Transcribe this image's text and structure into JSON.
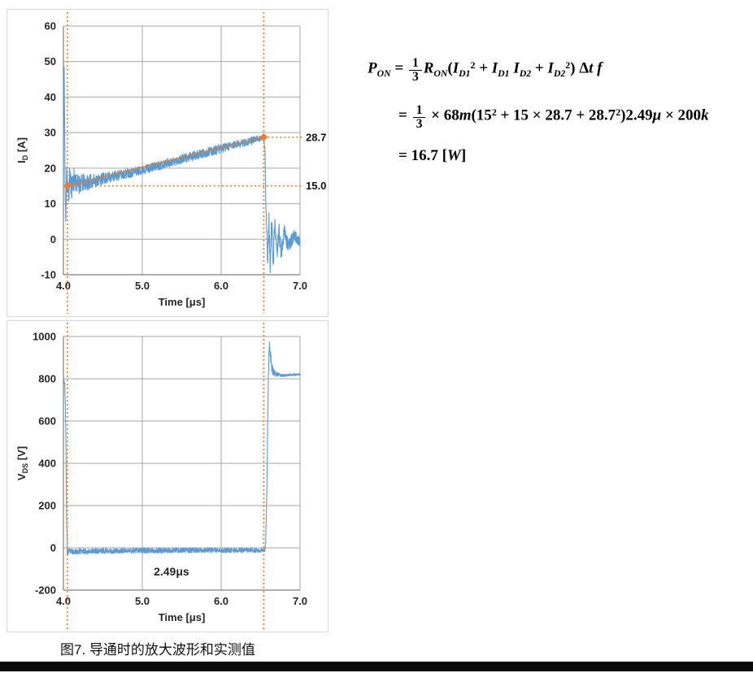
{
  "caption": "图7. 导通时的放大波形和实测值",
  "colors": {
    "waveform_blue": "#5B9BD5",
    "accent_orange": "#ED7D31",
    "trend_tan": "#C08552",
    "grid_gray": "#A6A6A6",
    "axis_gray": "#7F7F7F",
    "bottom_bar": "#0B0B0B"
  },
  "formula": {
    "lines": [
      [
        {
          "k": "v",
          "t": "P"
        },
        {
          "k": "s",
          "t": "ON"
        },
        {
          "k": "p",
          "t": " = "
        },
        {
          "k": "f",
          "n": "1",
          "d": "3"
        },
        {
          "k": "v",
          "t": "R"
        },
        {
          "k": "s",
          "t": "ON"
        },
        {
          "k": "p",
          "t": "("
        },
        {
          "k": "v",
          "t": "I"
        },
        {
          "k": "s",
          "t": "D1"
        },
        {
          "k": "u",
          "t": "2"
        },
        {
          "k": "p",
          "t": " + "
        },
        {
          "k": "v",
          "t": "I"
        },
        {
          "k": "s",
          "t": "D1"
        },
        {
          "k": "p",
          "t": " "
        },
        {
          "k": "v",
          "t": "I"
        },
        {
          "k": "s",
          "t": "D2"
        },
        {
          "k": "p",
          "t": " + "
        },
        {
          "k": "v",
          "t": "I"
        },
        {
          "k": "s",
          "t": "D2"
        },
        {
          "k": "u",
          "t": "2"
        },
        {
          "k": "p",
          "t": ") Δ"
        },
        {
          "k": "v",
          "t": "t"
        },
        {
          "k": "p",
          "t": " "
        },
        {
          "k": "v",
          "t": "f"
        }
      ],
      [
        {
          "k": "p",
          "t": "= "
        },
        {
          "k": "f",
          "n": "1",
          "d": "3"
        },
        {
          "k": "p",
          "t": " × 68"
        },
        {
          "k": "v",
          "t": "m"
        },
        {
          "k": "p",
          "t": "(15"
        },
        {
          "k": "u",
          "t": "2"
        },
        {
          "k": "p",
          "t": " + 15 × 28.7 + 28.7"
        },
        {
          "k": "u",
          "t": "2"
        },
        {
          "k": "p",
          "t": ")2.49"
        },
        {
          "k": "v",
          "t": "μ"
        },
        {
          "k": "p",
          "t": " × 200"
        },
        {
          "k": "v",
          "t": "k"
        }
      ],
      [
        {
          "k": "p",
          "t": "= 16.7 ["
        },
        {
          "k": "v",
          "t": "W"
        },
        {
          "k": "p",
          "t": "]"
        }
      ]
    ]
  },
  "chart_data": [
    {
      "type": "line",
      "name": "drain-current-turn-on",
      "xlabel": "Time [μs]",
      "ylabel": {
        "sym": "I",
        "sub": "D",
        "unit": " [A]"
      },
      "xlim": [
        4.0,
        7.0
      ],
      "ylim": [
        -10,
        60
      ],
      "xticks": [
        4.0,
        5.0,
        6.0,
        7.0
      ],
      "xtick_labels": [
        "4.0",
        "5.0",
        "6.0",
        "7.0"
      ],
      "yticks": [
        -10,
        0,
        10,
        20,
        30,
        40,
        50,
        60
      ],
      "ytick_labels": [
        "-10",
        "0",
        "10",
        "20",
        "30",
        "40",
        "50",
        "60"
      ],
      "grid": true,
      "series_color": "#5B9BD5",
      "seed": 11,
      "samples": 1300,
      "annotations": {
        "cursors": [
          4.05,
          6.54
        ],
        "points": [
          {
            "x": 4.05,
            "y": 15.0,
            "label": "15.0"
          },
          {
            "x": 6.54,
            "y": 28.7,
            "label": "28.7"
          }
        ],
        "trend": true,
        "texts": []
      },
      "waveform": {
        "mean": [
          [
            4.0,
            14
          ],
          [
            4.004,
            30
          ],
          [
            4.008,
            50
          ],
          [
            4.014,
            38
          ],
          [
            4.022,
            12
          ],
          [
            4.03,
            4
          ],
          [
            4.04,
            22
          ],
          [
            4.05,
            15
          ],
          [
            4.065,
            12
          ],
          [
            4.08,
            18
          ],
          [
            4.1,
            14.5
          ],
          [
            4.13,
            17
          ],
          [
            4.18,
            15.5
          ],
          [
            4.3,
            16.0
          ],
          [
            4.6,
            17.5
          ],
          [
            5.0,
            19.5
          ],
          [
            5.5,
            22.5
          ],
          [
            6.0,
            25.5
          ],
          [
            6.4,
            27.8
          ],
          [
            6.53,
            28.7
          ],
          [
            6.555,
            26
          ],
          [
            6.565,
            12
          ],
          [
            6.578,
            2
          ],
          [
            6.59,
            -7
          ],
          [
            6.605,
            5
          ],
          [
            6.62,
            -8
          ],
          [
            6.64,
            5
          ],
          [
            6.66,
            -6
          ],
          [
            6.68,
            4
          ],
          [
            6.705,
            -5
          ],
          [
            6.73,
            3
          ],
          [
            6.76,
            -4
          ],
          [
            6.8,
            2
          ],
          [
            6.85,
            -2
          ],
          [
            6.92,
            1
          ],
          [
            7.0,
            -1
          ]
        ],
        "amp": [
          [
            4.0,
            0.5
          ],
          [
            4.01,
            1.5
          ],
          [
            4.05,
            4
          ],
          [
            4.1,
            3.5
          ],
          [
            4.2,
            2.8
          ],
          [
            4.35,
            2.0
          ],
          [
            4.6,
            1.5
          ],
          [
            5.0,
            1.3
          ],
          [
            6.0,
            1.3
          ],
          [
            6.45,
            1.0
          ],
          [
            6.53,
            0.6
          ],
          [
            6.56,
            1.5
          ],
          [
            6.6,
            3
          ],
          [
            6.65,
            3
          ],
          [
            6.75,
            2.5
          ],
          [
            6.85,
            2.0
          ],
          [
            7.0,
            1.8
          ]
        ]
      }
    },
    {
      "type": "line",
      "name": "drain-source-voltage-turn-on",
      "xlabel": "Time [μs]",
      "ylabel": {
        "sym": "V",
        "sub": "DS",
        "unit": " [V]"
      },
      "xlim": [
        4.0,
        7.0
      ],
      "ylim": [
        -200,
        1000
      ],
      "xticks": [
        4.0,
        5.0,
        6.0,
        7.0
      ],
      "xtick_labels": [
        "4.0",
        "5.0",
        "6.0",
        "7.0"
      ],
      "yticks": [
        -200,
        0,
        200,
        400,
        600,
        800,
        1000
      ],
      "ytick_labels": [
        "-200",
        "0",
        "200",
        "400",
        "600",
        "800",
        "1000"
      ],
      "grid": true,
      "series_color": "#5B9BD5",
      "seed": 23,
      "samples": 1300,
      "annotations": {
        "cursors": [
          4.05,
          6.54
        ],
        "points": [],
        "trend": false,
        "texts": [
          {
            "x": 5.37,
            "y": -130,
            "text": "2.49μs"
          }
        ]
      },
      "waveform": {
        "mean": [
          [
            4.0,
            808
          ],
          [
            4.008,
            795
          ],
          [
            4.016,
            770
          ],
          [
            4.024,
            700
          ],
          [
            4.032,
            500
          ],
          [
            4.04,
            150
          ],
          [
            4.048,
            -20
          ],
          [
            4.06,
            -18
          ],
          [
            4.5,
            -15
          ],
          [
            5.5,
            -12
          ],
          [
            6.5,
            -12
          ],
          [
            6.555,
            -10
          ],
          [
            6.565,
            30
          ],
          [
            6.578,
            250
          ],
          [
            6.59,
            600
          ],
          [
            6.6,
            850
          ],
          [
            6.612,
            965
          ],
          [
            6.625,
            905
          ],
          [
            6.64,
            855
          ],
          [
            6.66,
            835
          ],
          [
            6.69,
            822
          ],
          [
            6.73,
            818
          ],
          [
            6.8,
            816
          ],
          [
            6.9,
            820
          ],
          [
            7.0,
            820
          ]
        ],
        "amp": [
          [
            4.0,
            6
          ],
          [
            4.02,
            15
          ],
          [
            4.04,
            25
          ],
          [
            4.055,
            18
          ],
          [
            4.1,
            13
          ],
          [
            5.0,
            12
          ],
          [
            6.4,
            11
          ],
          [
            6.55,
            8
          ],
          [
            6.58,
            12
          ],
          [
            6.6,
            20
          ],
          [
            6.612,
            14
          ],
          [
            6.63,
            32
          ],
          [
            6.65,
            24
          ],
          [
            6.68,
            15
          ],
          [
            6.72,
            9
          ],
          [
            6.8,
            6
          ],
          [
            7.0,
            5
          ]
        ]
      }
    }
  ]
}
